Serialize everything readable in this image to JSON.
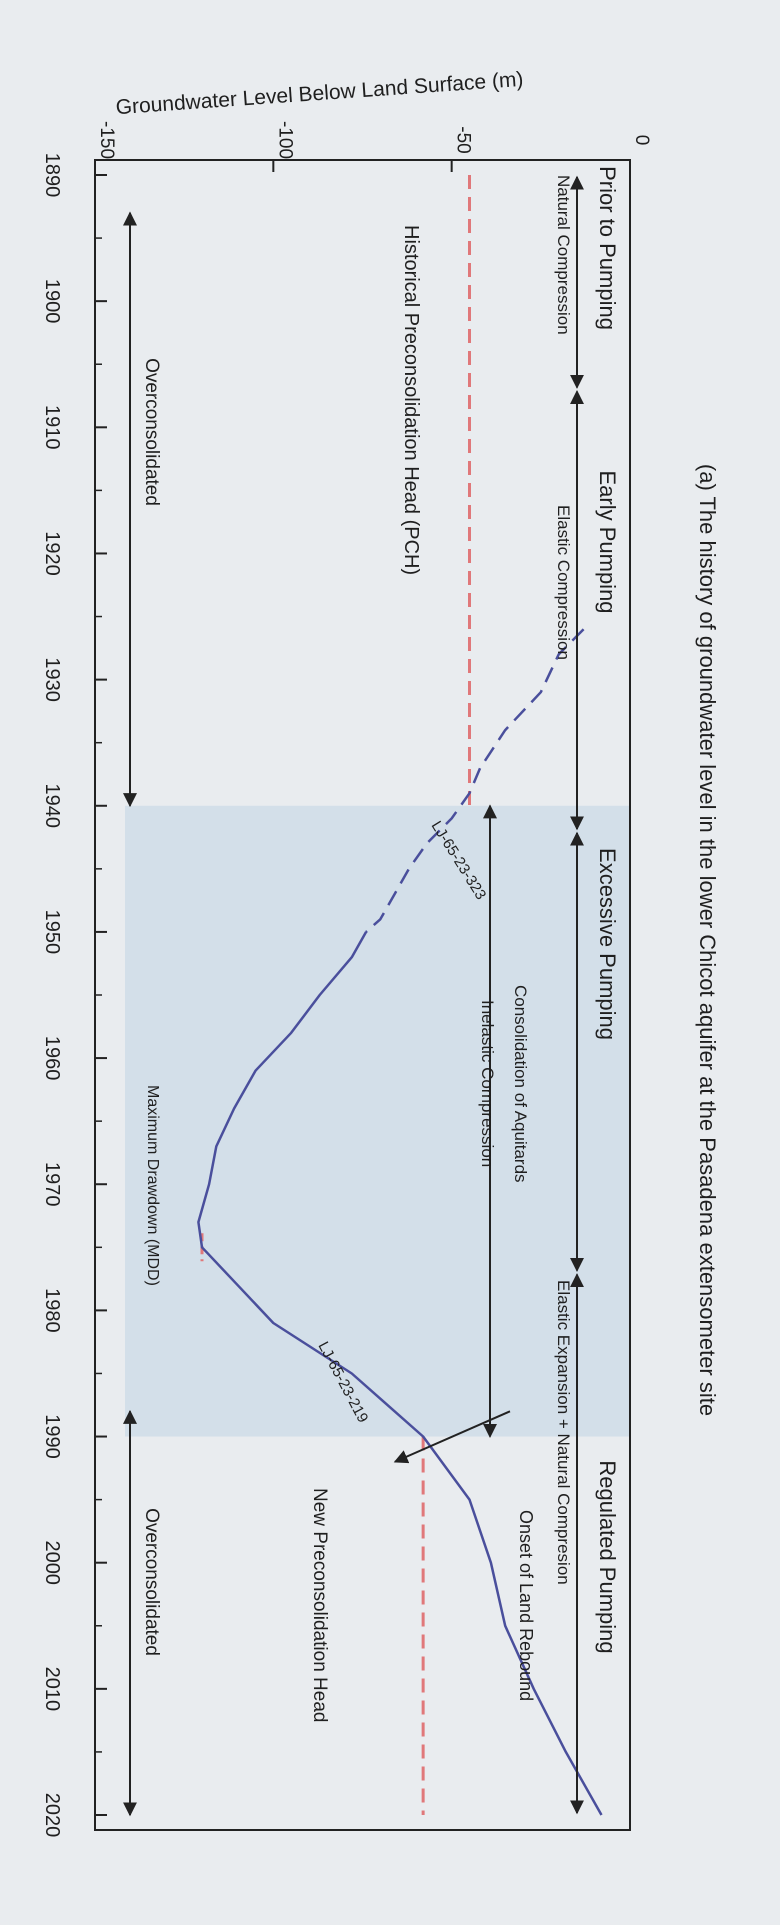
{
  "chart_data": {
    "type": "line",
    "title": "(a) The history of groundwater level in the lower Chicot aquifer at the Pasadena extensometer site",
    "xlabel": "",
    "ylabel": "Groundwater Level Below Land Surface (m)",
    "xlim": [
      1890,
      2020
    ],
    "ylim": [
      -150,
      0
    ],
    "x_ticks": [
      1890,
      1900,
      1910,
      1920,
      1930,
      1940,
      1950,
      1960,
      1970,
      1980,
      1990,
      2000,
      2010,
      2020
    ],
    "y_ticks": [
      -150,
      -100,
      -50,
      0
    ],
    "grid": false,
    "shaded_period": [
      1940,
      1990
    ],
    "series": [
      {
        "name": "LJ-65-23-323",
        "style": "dashed",
        "color": "#4a4f9c",
        "x": [
          1926,
          1928,
          1931,
          1934,
          1937,
          1939,
          1941,
          1943,
          1945,
          1947,
          1949,
          1950
        ],
        "y": [
          -13,
          -20,
          -25,
          -35,
          -42,
          -45,
          -50,
          -57,
          -62,
          -66,
          -70,
          -74
        ]
      },
      {
        "name": "LJ-65-23-219",
        "style": "solid",
        "color": "#4a4f9c",
        "x": [
          1950,
          1952,
          1955,
          1958,
          1961,
          1964,
          1967,
          1970,
          1973,
          1975,
          1978,
          1981,
          1985,
          1990,
          1995,
          2000,
          2005,
          2010,
          2015,
          2020
        ],
        "y": [
          -74,
          -78,
          -87,
          -95,
          -105,
          -111,
          -116,
          -118,
          -121,
          -120,
          -110,
          -100,
          -78,
          -58,
          -45,
          -39,
          -35,
          -27,
          -18,
          -8
        ]
      }
    ],
    "reference_lines": [
      {
        "name": "Historical Preconsolidation Head (PCH)",
        "value": -45,
        "x_range": [
          1890,
          1940
        ],
        "style": "dashed",
        "color": "#e0787a"
      },
      {
        "name": "New Preconsolidation Head",
        "value": -58,
        "x_range": [
          1990,
          2020
        ],
        "style": "dashed",
        "color": "#e0787a"
      }
    ],
    "phases": [
      {
        "label": "Prior to Pumping",
        "range": [
          1890,
          1907
        ],
        "sublabel": "Natural Compression"
      },
      {
        "label": "Early Pumping",
        "range": [
          1907,
          1942
        ],
        "sublabel": "Elastic Compression"
      },
      {
        "label": "Excessive Pumping",
        "range": [
          1942,
          1977
        ],
        "sublabel": ""
      },
      {
        "label": "Regulated Pumping",
        "range": [
          1977,
          2020
        ],
        "sublabel": "Elastic Expansion + Natural Compresion"
      }
    ],
    "annotations": {
      "consolidation": "Consolidation of Aquitards",
      "inelastic": "Inelastic Compression",
      "mdd": "Maximum Drawdown (MDD)",
      "overconsolidated_left": "Overconsolidated",
      "overconsolidated_right": "Overconsolidated",
      "onset": "Onset of Land Rebound",
      "pch": "Historical Preconsolidation Head (PCH)",
      "new_pch": "New Preconsolidation Head",
      "well_323": "LJ-65-23-323",
      "well_219": "LJ-65-23-219"
    },
    "mdd_point": {
      "x": 1975,
      "y": -120
    },
    "colors": {
      "series": "#4a4f9c",
      "preconsolidation": "#e0787a",
      "shading": "#d3dfe9",
      "axis": "#222222"
    }
  }
}
